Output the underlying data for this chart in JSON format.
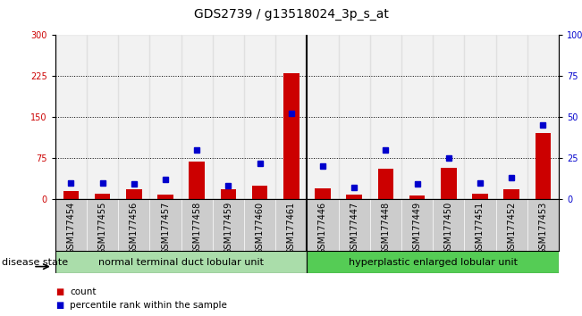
{
  "title": "GDS2739 / g13518024_3p_s_at",
  "samples": [
    "GSM177454",
    "GSM177455",
    "GSM177456",
    "GSM177457",
    "GSM177458",
    "GSM177459",
    "GSM177460",
    "GSM177461",
    "GSM177446",
    "GSM177447",
    "GSM177448",
    "GSM177449",
    "GSM177450",
    "GSM177451",
    "GSM177452",
    "GSM177453"
  ],
  "counts": [
    15,
    10,
    18,
    8,
    68,
    18,
    25,
    230,
    20,
    8,
    55,
    7,
    57,
    10,
    18,
    120
  ],
  "percentiles": [
    10,
    10,
    9,
    12,
    30,
    8,
    22,
    52,
    20,
    7,
    30,
    9,
    25,
    10,
    13,
    45
  ],
  "group1_label": "normal terminal duct lobular unit",
  "group2_label": "hyperplastic enlarged lobular unit",
  "group1_count": 8,
  "group2_count": 8,
  "ylim_left": [
    0,
    300
  ],
  "ylim_right": [
    0,
    100
  ],
  "yticks_left": [
    0,
    75,
    150,
    225,
    300
  ],
  "yticks_right": [
    0,
    25,
    50,
    75,
    100
  ],
  "bar_color": "#cc0000",
  "dot_color": "#0000cc",
  "group1_bg": "#aaddaa",
  "group2_bg": "#55cc55",
  "col_bg": "#cccccc",
  "grid_color": "black",
  "title_fontsize": 10,
  "tick_fontsize": 7,
  "label_fontsize": 8,
  "disease_state_label": "disease state",
  "legend_count_label": "count",
  "legend_pct_label": "percentile rank within the sample"
}
